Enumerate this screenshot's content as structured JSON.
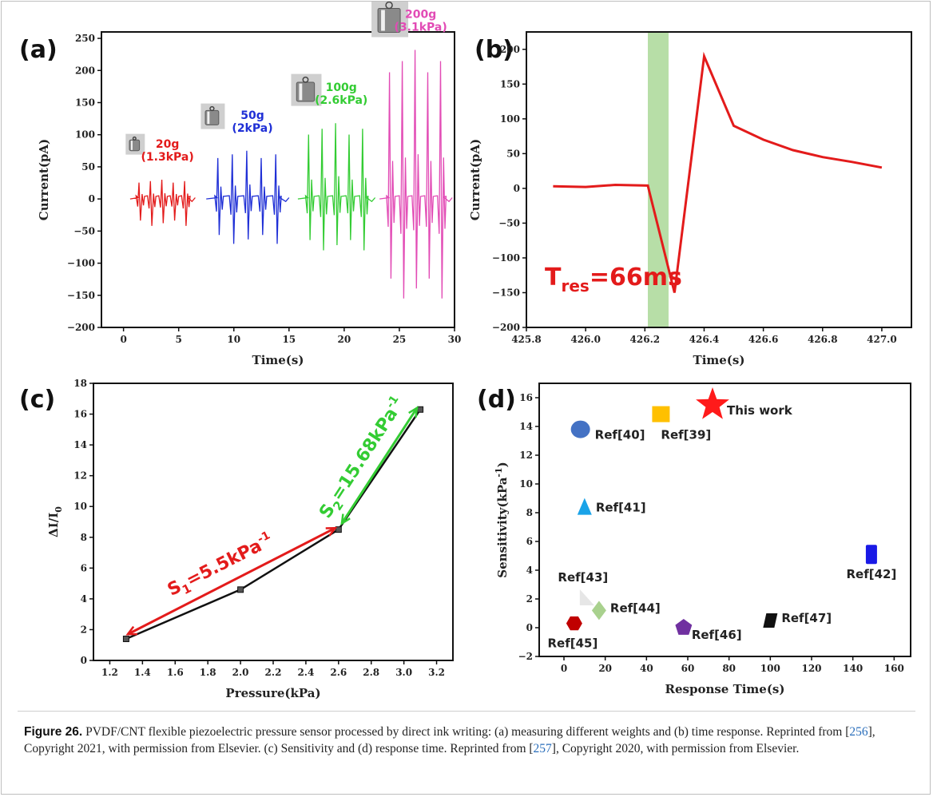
{
  "panel_labels": {
    "a": "(a)",
    "b": "(b)",
    "c": "(c)",
    "d": "(d)"
  },
  "colors": {
    "red": "#e31b1b",
    "blue": "#1f2fd6",
    "green": "#33cc33",
    "pink": "#e24bb5",
    "black": "#111111",
    "band": "#9fd38a"
  },
  "caption": {
    "label": "Figure 26.",
    "seg1": " PVDF/CNT flexible piezoelectric pressure sensor processed by direct ink writing: (a) measuring different weights and (b) time response. Reprinted from [",
    "ref1": "256",
    "seg2": "], Copyright 2021, with permission from Elsevier. (c) Sensitivity and (d) response time. Reprinted from [",
    "ref2": "257",
    "seg3": "], Copyright 2020, with permission from Elsevier."
  },
  "chart_data": [
    {
      "id": "a",
      "type": "line",
      "xlabel": "Time(s)",
      "ylabel": "Current(pA)",
      "xlim": [
        -2,
        30
      ],
      "ylim": [
        -200,
        260
      ],
      "xticks": [
        0,
        5,
        10,
        15,
        20,
        25,
        30
      ],
      "yticks": [
        -200,
        -150,
        -100,
        -50,
        0,
        50,
        100,
        150,
        200,
        250
      ],
      "series": [
        {
          "color": "red",
          "label": "20g",
          "sublabel": "(1.3kPa)",
          "range": [
            0.6,
            6.5
          ],
          "peak": 30,
          "trough": -42
        },
        {
          "color": "blue",
          "label": "50g",
          "sublabel": "(2kPa)",
          "range": [
            7.5,
            15
          ],
          "peak": 75,
          "trough": -70
        },
        {
          "color": "green",
          "label": "100g",
          "sublabel": "(2.6kPa)",
          "range": [
            15.8,
            22.8
          ],
          "peak": 118,
          "trough": -80
        },
        {
          "color": "pink",
          "label": "200g",
          "sublabel": "(3.1kPa)",
          "range": [
            23.2,
            29.8
          ],
          "peak": 232,
          "trough": -155
        }
      ]
    },
    {
      "id": "b",
      "type": "line",
      "xlabel": "Time(s)",
      "ylabel": "Current(pA)",
      "xlim": [
        425.8,
        427.1
      ],
      "ylim": [
        -200,
        225
      ],
      "xticks": [
        "425.8",
        "426.0",
        "426.2",
        "426.4",
        "426.6",
        "426.8",
        "427.0"
      ],
      "yticks": [
        -200,
        -150,
        -100,
        -50,
        0,
        50,
        100,
        150,
        200
      ],
      "band": [
        426.21,
        426.28
      ],
      "annotation": {
        "T": "T",
        "sub": "res",
        "rest": "=66ms"
      },
      "points": [
        [
          425.89,
          3
        ],
        [
          426.0,
          2
        ],
        [
          426.1,
          5
        ],
        [
          426.21,
          4
        ],
        [
          426.3,
          -150
        ],
        [
          426.4,
          190
        ],
        [
          426.5,
          90
        ],
        [
          426.6,
          70
        ],
        [
          426.7,
          55
        ],
        [
          426.8,
          45
        ],
        [
          426.9,
          38
        ],
        [
          427.0,
          30
        ]
      ]
    },
    {
      "id": "c",
      "type": "line",
      "xlabel": "Pressure(kPa)",
      "ylabel": "ΔI/I",
      "ylabel_sub": "0",
      "xlim": [
        1.1,
        3.3
      ],
      "ylim": [
        0,
        18
      ],
      "xticks": [
        "1.2",
        "1.4",
        "1.6",
        "1.8",
        "2.0",
        "2.2",
        "2.4",
        "2.6",
        "2.8",
        "3.0",
        "3.2"
      ],
      "yticks": [
        0,
        2,
        4,
        6,
        8,
        10,
        12,
        14,
        16,
        18
      ],
      "points": [
        [
          1.3,
          1.4
        ],
        [
          2.0,
          4.6
        ],
        [
          2.6,
          8.5
        ],
        [
          3.1,
          16.3
        ]
      ],
      "fit1": {
        "text": "S",
        "sub": "1",
        "rest": "=5.5kPa",
        "sup": "-1"
      },
      "fit2": {
        "text": "S",
        "sub": "2",
        "rest": "=15.68kPa",
        "sup": "-1"
      }
    },
    {
      "id": "d",
      "type": "scatter",
      "xlabel": "Response Time(s)",
      "ylabel": "Sensitivity(kPa",
      "ylabel_sup": "-1",
      "ylabel_end": ")",
      "xlim": [
        -12,
        168
      ],
      "ylim": [
        -2,
        17
      ],
      "xticks": [
        0,
        20,
        40,
        60,
        80,
        100,
        120,
        140,
        160
      ],
      "yticks": [
        -2,
        0,
        2,
        4,
        6,
        8,
        10,
        12,
        14,
        16
      ],
      "points": [
        {
          "label": "This work",
          "x": 72,
          "y": 15.5,
          "shape": "star",
          "color": "#ff1a1a"
        },
        {
          "label": "Ref[39]",
          "x": 47,
          "y": 14.8,
          "shape": "square",
          "color": "#ffc000"
        },
        {
          "label": "Ref[40]",
          "x": 8,
          "y": 13.8,
          "shape": "circle",
          "color": "#4472c4"
        },
        {
          "label": "Ref[41]",
          "x": 10,
          "y": 8.3,
          "shape": "triangle",
          "color": "#1aa3e8"
        },
        {
          "label": "Ref[42]",
          "x": 149,
          "y": 5.1,
          "shape": "rect",
          "color": "#1a1ae6"
        },
        {
          "label": "Ref[43]",
          "x": 10,
          "y": 2.0,
          "shape": "triangle-light",
          "color": "#e6e6e6"
        },
        {
          "label": "Ref[44]",
          "x": 17,
          "y": 1.2,
          "shape": "diamond",
          "color": "#a9d18e"
        },
        {
          "label": "Ref[45]",
          "x": 5,
          "y": 0.3,
          "shape": "hexagon",
          "color": "#c00000"
        },
        {
          "label": "Ref[46]",
          "x": 58,
          "y": 0.0,
          "shape": "pentagon",
          "color": "#7030a0"
        },
        {
          "label": "Ref[47]",
          "x": 100,
          "y": 0.5,
          "shape": "parallelogram",
          "color": "#111111"
        }
      ]
    }
  ]
}
